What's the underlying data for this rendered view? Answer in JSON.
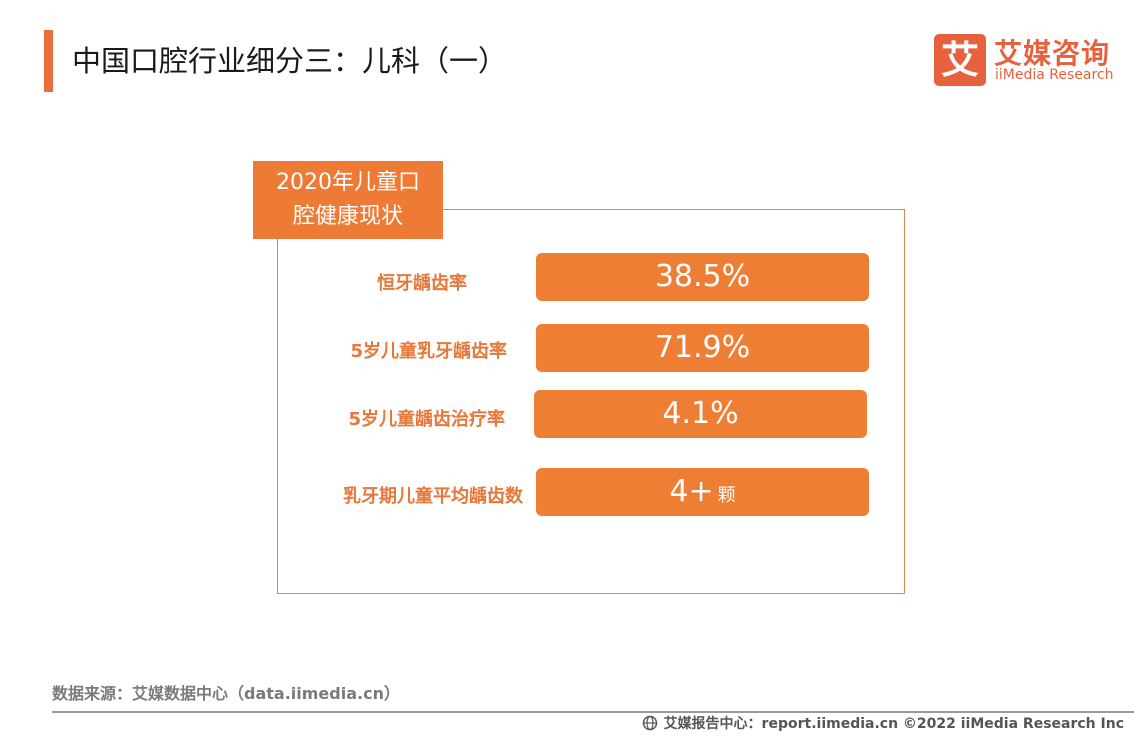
{
  "header": {
    "title": "中国口腔行业细分三：儿科（一）",
    "accent_color": "#ec6c3c"
  },
  "logo": {
    "mark": "艾",
    "name_cn": "艾媒咨询",
    "name_en": "iiMedia Research"
  },
  "panel": {
    "title_line1": "2020年儿童口",
    "title_line2": "腔健康现状",
    "rows": [
      {
        "label": "恒牙龋齿率",
        "value": "38.5%",
        "unit": ""
      },
      {
        "label": "5岁儿童乳牙龋齿率",
        "value": "71.9%",
        "unit": ""
      },
      {
        "label": "5岁儿童龋齿治疗率",
        "value": "4.1%",
        "unit": ""
      },
      {
        "label": "乳牙期儿童平均龋齿数",
        "value": "4+",
        "unit": "颗"
      }
    ],
    "pill_color": "#ed7e33"
  },
  "source": "数据来源：艾媒数据中心（data.iimedia.cn）",
  "footer": {
    "icon": "globe-icon",
    "text": "艾媒报告中心：report.iimedia.cn  ©2022  iiMedia Research  Inc"
  }
}
